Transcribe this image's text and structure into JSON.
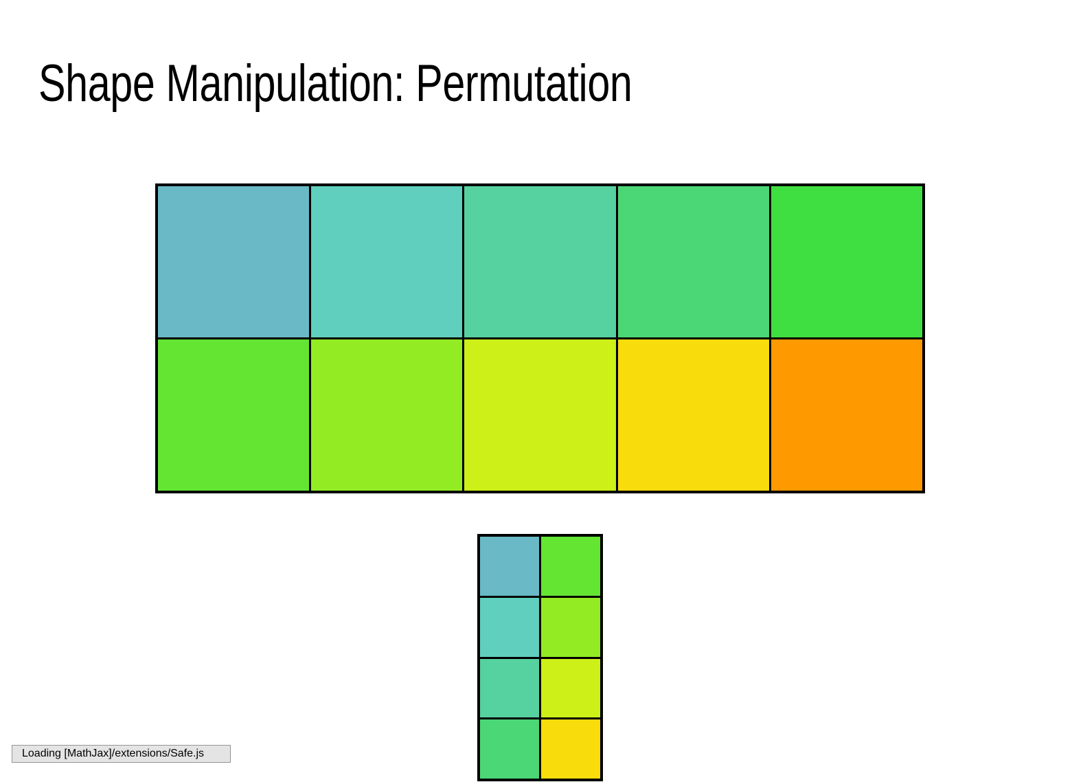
{
  "title": "Shape Manipulation: Permutation",
  "status": "Loading [MathJax]/extensions/Safe.js",
  "original_grid": {
    "rows": 2,
    "cols": 5,
    "cells": [
      [
        "#69b9c6",
        "#60cfbd",
        "#56d1a0",
        "#4bd776",
        "#40df41"
      ],
      [
        "#63e532",
        "#93eb24",
        "#cdf018",
        "#f8dc0c",
        "#fe9900"
      ]
    ]
  },
  "permuted_grid": {
    "rows": 4,
    "cols": 2,
    "columns": [
      [
        "#69b9c6",
        "#60cfbd",
        "#56d1a0",
        "#4bd776"
      ],
      [
        "#63e532",
        "#93eb24",
        "#cdf018",
        "#f8dc0c"
      ]
    ]
  }
}
